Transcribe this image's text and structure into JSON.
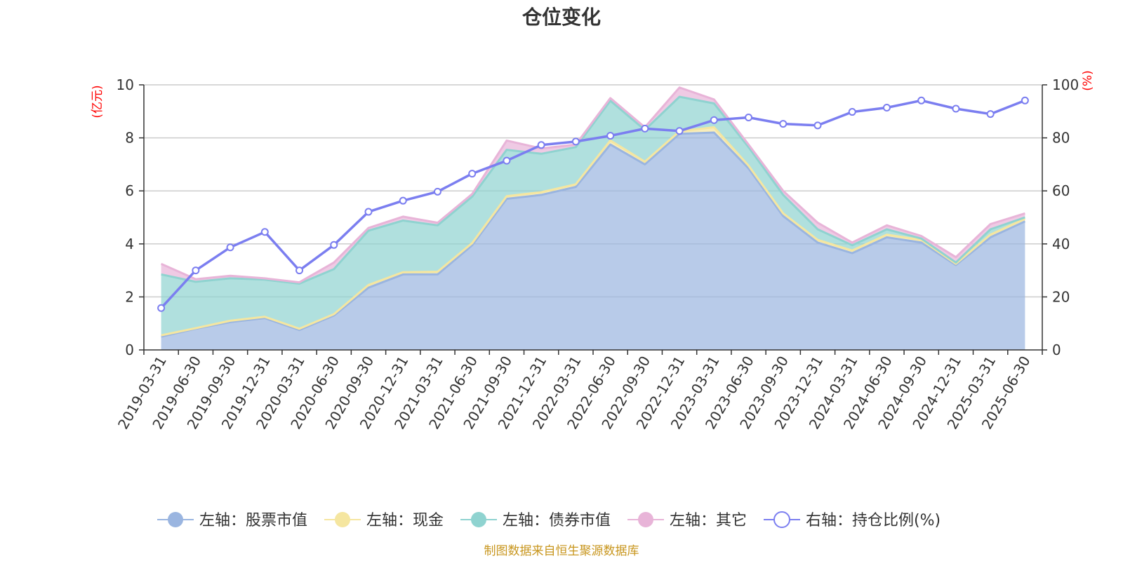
{
  "chart_data": {
    "type": "area",
    "title": "仓位变化",
    "left_unit": "(亿元)",
    "right_unit": "(%)",
    "left_ylim": [
      0,
      10
    ],
    "right_ylim": [
      0,
      100
    ],
    "left_ticks": [
      "0",
      "2",
      "4",
      "6",
      "8",
      "10"
    ],
    "right_ticks": [
      "0",
      "20",
      "40",
      "60",
      "80",
      "100"
    ],
    "grid": true,
    "legend_position": "bottom",
    "source": "制图数据来自恒生聚源数据库",
    "x": [
      "2019-03-31",
      "2019-06-30",
      "2019-09-30",
      "2019-12-31",
      "2020-03-31",
      "2020-06-30",
      "2020-09-30",
      "2020-12-31",
      "2021-03-31",
      "2021-06-30",
      "2021-09-30",
      "2021-12-31",
      "2022-03-31",
      "2022-06-30",
      "2022-09-30",
      "2022-12-31",
      "2023-03-31",
      "2023-06-30",
      "2023-09-30",
      "2023-12-31",
      "2024-03-31",
      "2024-06-30",
      "2024-09-30",
      "2024-12-31",
      "2025-03-31",
      "2025-06-30"
    ],
    "series": [
      {
        "name": "左轴：股票市值",
        "axis": "left",
        "stack": true,
        "color": "#9ab5e0",
        "values": [
          0.5,
          0.8,
          1.05,
          1.2,
          0.75,
          1.3,
          2.35,
          2.85,
          2.85,
          3.95,
          5.7,
          5.85,
          6.15,
          7.75,
          7.0,
          8.15,
          8.2,
          6.85,
          5.05,
          4.05,
          3.65,
          4.25,
          4.05,
          3.2,
          4.25,
          4.85
        ]
      },
      {
        "name": "左轴：现金",
        "axis": "left",
        "stack": true,
        "color": "#f5e6a0",
        "values": [
          0.05,
          0.02,
          0.05,
          0.05,
          0.05,
          0.05,
          0.1,
          0.08,
          0.1,
          0.08,
          0.1,
          0.1,
          0.1,
          0.15,
          0.1,
          0.1,
          0.2,
          0.1,
          0.1,
          0.1,
          0.1,
          0.1,
          0.1,
          0.05,
          0.1,
          0.1
        ]
      },
      {
        "name": "左轴：债券市值",
        "axis": "left",
        "stack": true,
        "color": "#8fd3d0",
        "values": [
          2.3,
          1.75,
          1.6,
          1.4,
          1.7,
          1.7,
          2.05,
          1.95,
          1.75,
          1.75,
          1.75,
          1.45,
          1.4,
          1.5,
          1.2,
          1.3,
          0.9,
          0.7,
          0.7,
          0.4,
          0.2,
          0.2,
          0.05,
          0.05,
          0.2,
          0.05
        ]
      },
      {
        "name": "左轴：其它",
        "axis": "left",
        "stack": true,
        "color": "#e8b4d8",
        "values": [
          0.4,
          0.1,
          0.1,
          0.05,
          0.05,
          0.25,
          0.1,
          0.15,
          0.1,
          0.1,
          0.35,
          0.2,
          0.1,
          0.1,
          0.1,
          0.35,
          0.15,
          0.1,
          0.15,
          0.25,
          0.1,
          0.15,
          0.1,
          0.2,
          0.2,
          0.15
        ]
      },
      {
        "name": "右轴：持仓比例(%)",
        "axis": "right",
        "stack": false,
        "color": "#7b7ef0",
        "values": [
          15.8,
          30.0,
          38.7,
          44.5,
          30.0,
          39.6,
          52.1,
          56.3,
          59.7,
          66.5,
          71.4,
          77.3,
          78.6,
          80.8,
          83.5,
          82.6,
          86.7,
          87.7,
          85.3,
          84.7,
          89.8,
          91.4,
          94.1,
          91.0,
          89.0,
          94.1
        ]
      }
    ]
  }
}
